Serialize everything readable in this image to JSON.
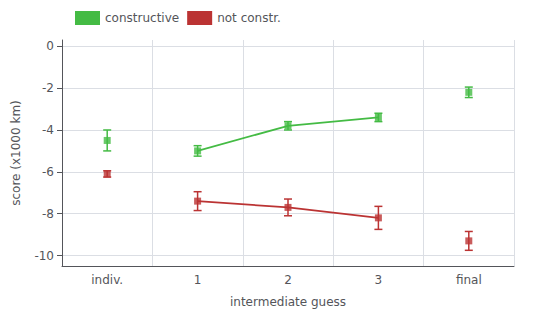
{
  "chart_data": {
    "type": "line",
    "xlabel": "intermediate guess",
    "ylabel": "score (x1000 km)",
    "categories": [
      "indiv.",
      "1",
      "2",
      "3",
      "final"
    ],
    "series": [
      {
        "name": "constructive",
        "color": "#44bb44",
        "marker": "square",
        "values": [
          -4.5,
          -5.0,
          -3.8,
          -3.4,
          -2.2
        ],
        "yerr": [
          0.5,
          0.25,
          0.2,
          0.2,
          0.25
        ]
      },
      {
        "name": "not constr.",
        "color": "#bb3333",
        "marker": "square",
        "values": [
          -6.1,
          -7.4,
          -7.7,
          -8.2,
          -9.3
        ],
        "yerr": [
          0.15,
          0.45,
          0.4,
          0.55,
          0.45
        ]
      }
    ],
    "ylim": [
      -10.5,
      0.3
    ],
    "yticks": [
      0,
      -2,
      -4,
      -6,
      -8,
      -10
    ],
    "grid": true,
    "legend": "upper left"
  }
}
